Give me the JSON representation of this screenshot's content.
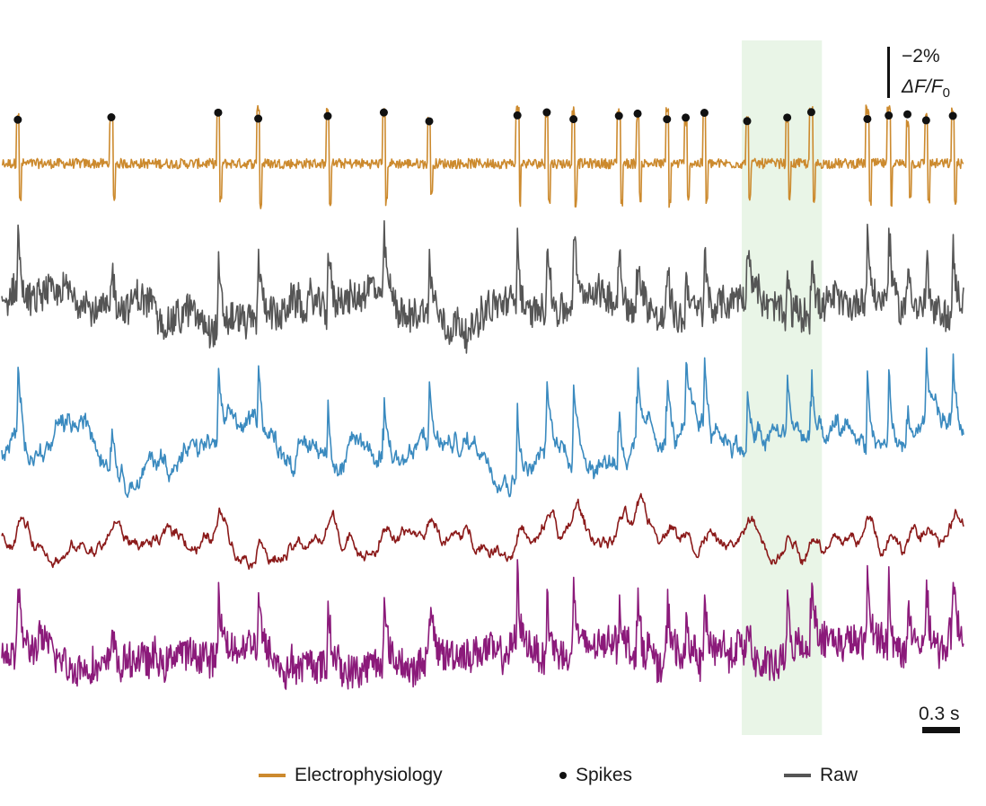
{
  "chart_data": {
    "type": "line",
    "title": "",
    "duration_s": 3.6,
    "series": [
      {
        "name": "Electrophysiology",
        "key": "ephys",
        "color": "#cc8a2e",
        "noise": 0.09,
        "spike_amp": 1.0,
        "bumps": 0.0,
        "neg_spike": true
      },
      {
        "key": "trace2",
        "color": "#555555",
        "noise": 0.18,
        "spike_amp": 0.9,
        "bumps": 0.15,
        "neg_spike": false
      },
      {
        "key": "trace3",
        "color": "#3a8abf",
        "noise": 0.05,
        "spike_amp": 0.95,
        "bumps": 0.25,
        "neg_spike": false
      },
      {
        "key": "trace4",
        "color": "#8b1a1a",
        "noise": 0.025,
        "spike_amp": 0.55,
        "bumps": 0.3,
        "neg_spike": false
      },
      {
        "key": "trace5",
        "color": "#8b1a7a",
        "noise": 0.2,
        "spike_amp": 0.85,
        "bumps": 0.15,
        "neg_spike": false
      }
    ],
    "spike_times_s": [
      0.06,
      0.41,
      0.81,
      0.96,
      1.22,
      1.43,
      1.6,
      1.93,
      2.04,
      2.14,
      2.31,
      2.38,
      2.49,
      2.56,
      2.63,
      2.79,
      2.94,
      3.03,
      3.24,
      3.32,
      3.39,
      3.46,
      3.56
    ],
    "highlight_window_s": [
      2.77,
      3.07
    ],
    "scale_bars": {
      "y_label": "−2%",
      "y_unit": "ΔF/F",
      "y_unit_sub": "0",
      "x_label": "0.3 s"
    },
    "legend": [
      {
        "label": "Electrophysiology",
        "marker": "line",
        "color": "#cc8a2e"
      },
      {
        "label": "Spikes",
        "marker": "dot",
        "color": "#111111"
      },
      {
        "label": "Raw",
        "marker": "line",
        "color": "#555555"
      }
    ]
  }
}
